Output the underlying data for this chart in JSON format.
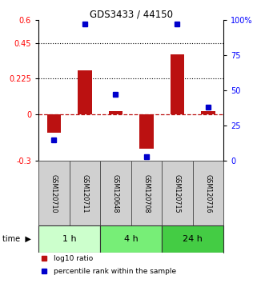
{
  "title": "GDS3433 / 44150",
  "samples": [
    "GSM120710",
    "GSM120711",
    "GSM120648",
    "GSM120708",
    "GSM120715",
    "GSM120716"
  ],
  "log10_ratio": [
    -0.12,
    0.28,
    0.02,
    -0.22,
    0.38,
    0.02
  ],
  "percentile_rank": [
    15,
    97,
    47,
    3,
    97,
    38
  ],
  "bar_color": "#bb1111",
  "point_color": "#0000cc",
  "left_ylim": [
    -0.3,
    0.6
  ],
  "right_ylim": [
    0,
    100
  ],
  "left_yticks": [
    -0.3,
    0,
    0.225,
    0.45,
    0.6
  ],
  "left_yticklabels": [
    "-0.3",
    "0",
    "0.225",
    "0.45",
    "0.6"
  ],
  "right_yticks": [
    0,
    25,
    50,
    75,
    100
  ],
  "right_yticklabels": [
    "0",
    "25",
    "50",
    "75",
    "100%"
  ],
  "dotted_lines": [
    0.45,
    0.225
  ],
  "time_groups": [
    {
      "label": "1 h",
      "start": 0,
      "end": 2,
      "color": "#ccffcc"
    },
    {
      "label": "4 h",
      "start": 2,
      "end": 4,
      "color": "#77ee77"
    },
    {
      "label": "24 h",
      "start": 4,
      "end": 6,
      "color": "#44cc44"
    }
  ],
  "time_label": "time",
  "legend_bar_label": "log10 ratio",
  "legend_point_label": "percentile rank within the sample",
  "background_color": "#ffffff"
}
